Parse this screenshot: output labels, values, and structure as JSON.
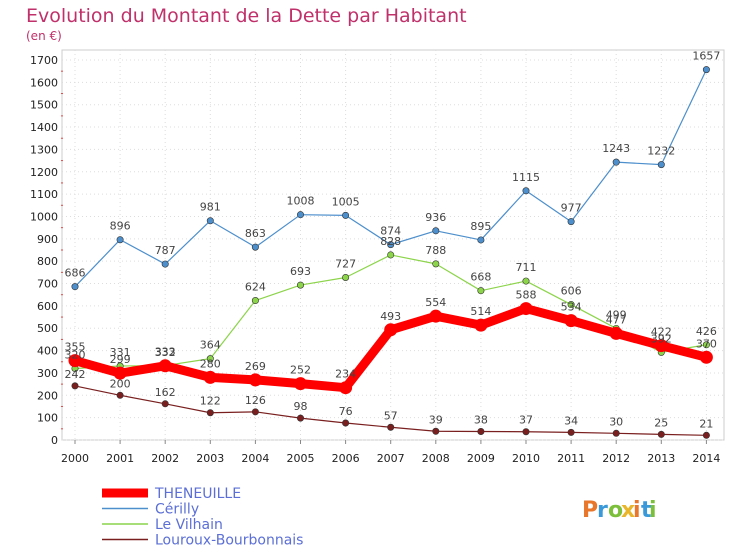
{
  "chart_data": {
    "type": "line",
    "title": "Evolution du Montant de la Dette par Habitant",
    "subtitle": "(en €)",
    "x": [
      "2000",
      "2001",
      "2002",
      "2003",
      "2004",
      "2005",
      "2006",
      "2007",
      "2008",
      "2009",
      "2010",
      "2011",
      "2012",
      "2013",
      "2014"
    ],
    "yticks": [
      0,
      100,
      200,
      300,
      400,
      500,
      600,
      700,
      800,
      900,
      1000,
      1100,
      1200,
      1300,
      1400,
      1500,
      1600,
      1700
    ],
    "ylim": [
      0,
      1700
    ],
    "grid": true,
    "legend_position": "bottom-left",
    "series": [
      {
        "name": "THENEUILLE",
        "color": "#ff0000",
        "values": [
          355,
          299,
          332,
          280,
          269,
          252,
          234,
          493,
          554,
          514,
          588,
          534,
          477,
          422,
          370
        ]
      },
      {
        "name": "Cérilly",
        "color": "#4d8fcc",
        "values": [
          686,
          896,
          787,
          981,
          863,
          1008,
          1005,
          874,
          936,
          895,
          1115,
          977,
          1243,
          1232,
          1657
        ]
      },
      {
        "name": "Le Vilhain",
        "color": "#8cd44a",
        "values": [
          320,
          331,
          333,
          364,
          624,
          693,
          727,
          828,
          788,
          668,
          711,
          606,
          499,
          392,
          426
        ]
      },
      {
        "name": "Louroux-Bourbonnais",
        "color": "#7a1f1f",
        "values": [
          242,
          200,
          162,
          122,
          126,
          98,
          76,
          57,
          39,
          38,
          37,
          34,
          30,
          25,
          21
        ]
      }
    ]
  },
  "logo": {
    "text": "Proxiti",
    "colors": [
      "#e8762b",
      "#3a9ad9",
      "#7bbf3a",
      "#e8b52b"
    ]
  }
}
